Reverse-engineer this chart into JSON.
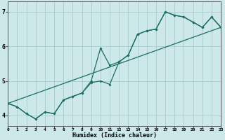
{
  "xlabel": "Humidex (Indice chaleur)",
  "xlim": [
    0,
    23
  ],
  "ylim": [
    3.7,
    7.3
  ],
  "yticks": [
    4,
    5,
    6,
    7
  ],
  "xticks": [
    0,
    1,
    2,
    3,
    4,
    5,
    6,
    7,
    8,
    9,
    10,
    11,
    12,
    13,
    14,
    15,
    16,
    17,
    18,
    19,
    20,
    21,
    22,
    23
  ],
  "bg_color": "#cce8e8",
  "grid_color": "#aacccc",
  "line_color": "#1a6e62",
  "line1_x": [
    0,
    1,
    2,
    3,
    4,
    5,
    6,
    7,
    8,
    9,
    10,
    11,
    12,
    13,
    14,
    15,
    16,
    17,
    18,
    19,
    20,
    21,
    22,
    23
  ],
  "line1_y": [
    4.35,
    4.25,
    4.05,
    3.9,
    4.1,
    4.05,
    4.45,
    4.55,
    4.65,
    5.0,
    5.95,
    5.45,
    5.55,
    5.75,
    6.35,
    6.45,
    6.5,
    7.0,
    6.9,
    6.85,
    6.7,
    6.55,
    6.85,
    6.55
  ],
  "line2_x": [
    0,
    1,
    2,
    3,
    4,
    5,
    6,
    7,
    8,
    9,
    10,
    11,
    12,
    13,
    14,
    15,
    16,
    17,
    18,
    19,
    20,
    21,
    22,
    23
  ],
  "line2_y": [
    4.35,
    4.25,
    4.05,
    3.9,
    4.1,
    4.05,
    4.45,
    4.55,
    4.65,
    4.95,
    5.0,
    4.9,
    5.55,
    5.75,
    6.35,
    6.45,
    6.5,
    7.0,
    6.9,
    6.85,
    6.7,
    6.55,
    6.85,
    6.55
  ],
  "line3_x": [
    0,
    23
  ],
  "line3_y": [
    4.35,
    6.55
  ]
}
